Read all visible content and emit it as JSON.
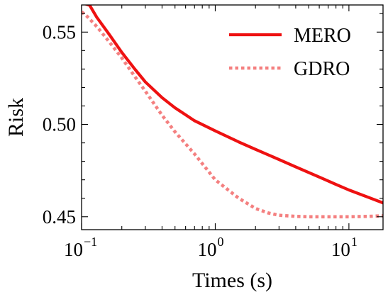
{
  "chart_data": {
    "type": "line",
    "xlabel": "Times (s)",
    "ylabel": "Risk",
    "xscale": "log",
    "xlim": [
      0.1,
      18
    ],
    "ylim": [
      0.443,
      0.5647
    ],
    "x_ticks": [
      {
        "value": 0.1,
        "base": "10",
        "exp": "−1"
      },
      {
        "value": 1,
        "base": "10",
        "exp": "0"
      },
      {
        "value": 10,
        "base": "10",
        "exp": "1"
      }
    ],
    "y_ticks": [
      {
        "value": 0.45,
        "label": "0.45"
      },
      {
        "value": 0.5,
        "label": "0.50"
      },
      {
        "value": 0.55,
        "label": "0.55"
      }
    ],
    "legend_position": "top-right",
    "series": [
      {
        "name": "MERO",
        "color": "#ee1111",
        "style": "solid",
        "x": [
          0.1,
          0.115,
          0.13,
          0.16,
          0.2,
          0.25,
          0.3,
          0.4,
          0.5,
          0.7,
          1.0,
          1.5,
          2.0,
          3.0,
          4.0,
          6.0,
          8.0,
          10.0,
          14.0,
          18.0
        ],
        "y": [
          0.566,
          0.5645,
          0.558,
          0.549,
          0.539,
          0.53,
          0.523,
          0.5145,
          0.509,
          0.502,
          0.4965,
          0.4905,
          0.4865,
          0.481,
          0.477,
          0.4715,
          0.4675,
          0.4645,
          0.4605,
          0.4575
        ]
      },
      {
        "name": "GDRO",
        "color": "#f48080",
        "style": "dotted",
        "x": [
          0.1,
          0.11,
          0.13,
          0.16,
          0.2,
          0.25,
          0.3,
          0.4,
          0.5,
          0.7,
          1.0,
          1.5,
          2.0,
          2.5,
          3.0,
          4.0,
          5.0,
          7.0,
          10.0,
          14.0,
          18.0
        ],
        "y": [
          0.561,
          0.5585,
          0.553,
          0.545,
          0.536,
          0.526,
          0.518,
          0.505,
          0.496,
          0.484,
          0.47,
          0.46,
          0.4545,
          0.452,
          0.4508,
          0.4502,
          0.45,
          0.45,
          0.45,
          0.4502,
          0.4505
        ]
      }
    ]
  }
}
